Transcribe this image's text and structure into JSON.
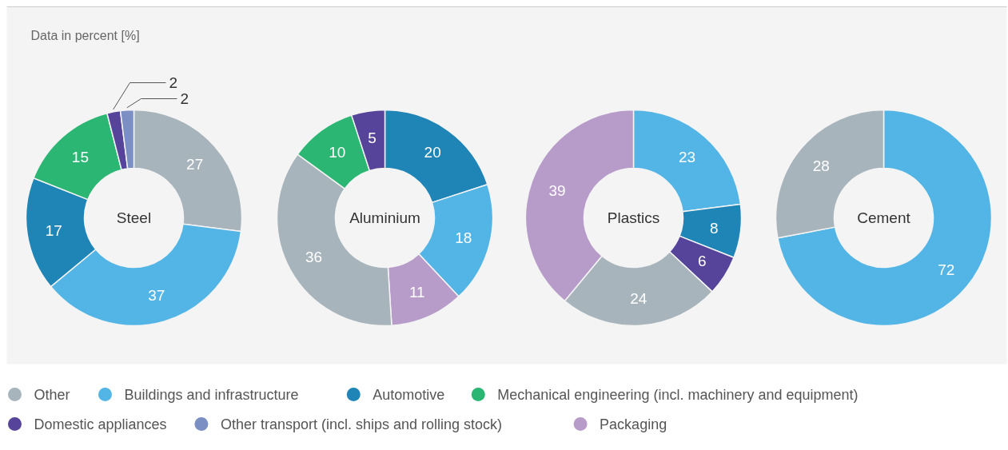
{
  "chart_data": [
    {
      "type": "donut",
      "title": "Steel",
      "annotations": [
        "Data in percent [%]"
      ],
      "categories": [
        "Other",
        "Buildings and infrastructure",
        "Automotive",
        "Mechanical engineering (incl. machinery and equipment)",
        "Domestic appliances",
        "Other transport (incl. ships and rolling stock)"
      ],
      "values": [
        27,
        37,
        17,
        15,
        2,
        2
      ],
      "colors": [
        "#a7b4bb",
        "#52b5e6",
        "#1f84b6",
        "#2bb673",
        "#55449a",
        "#7b8fc4"
      ],
      "data_labels": true,
      "legend": "bottom"
    },
    {
      "type": "donut",
      "title": "Aluminium",
      "categories": [
        null,
        null,
        "Packaging",
        null,
        null,
        null
      ],
      "values": [
        20,
        18,
        11,
        36,
        10,
        5
      ],
      "colors": [
        "#1f84b6",
        "#52b5e6",
        "#b79bc9",
        "#a7b4bb",
        "#2bb673",
        "#55449a"
      ],
      "data_labels": true,
      "legend": "bottom"
    },
    {
      "type": "donut",
      "title": "Plastics",
      "categories": [
        null,
        null,
        null,
        null,
        null
      ],
      "values": [
        23,
        8,
        6,
        24,
        39
      ],
      "colors": [
        "#52b5e6",
        "#1f84b6",
        "#55449a",
        "#a7b4bb",
        "#b79bc9"
      ],
      "data_labels": true
    },
    {
      "type": "donut",
      "title": "Cement",
      "categories": [
        null,
        null
      ],
      "values": [
        72,
        28
      ],
      "colors": [
        "#52b5e6",
        "#a7b4bb"
      ],
      "data_labels": true
    }
  ]
}
